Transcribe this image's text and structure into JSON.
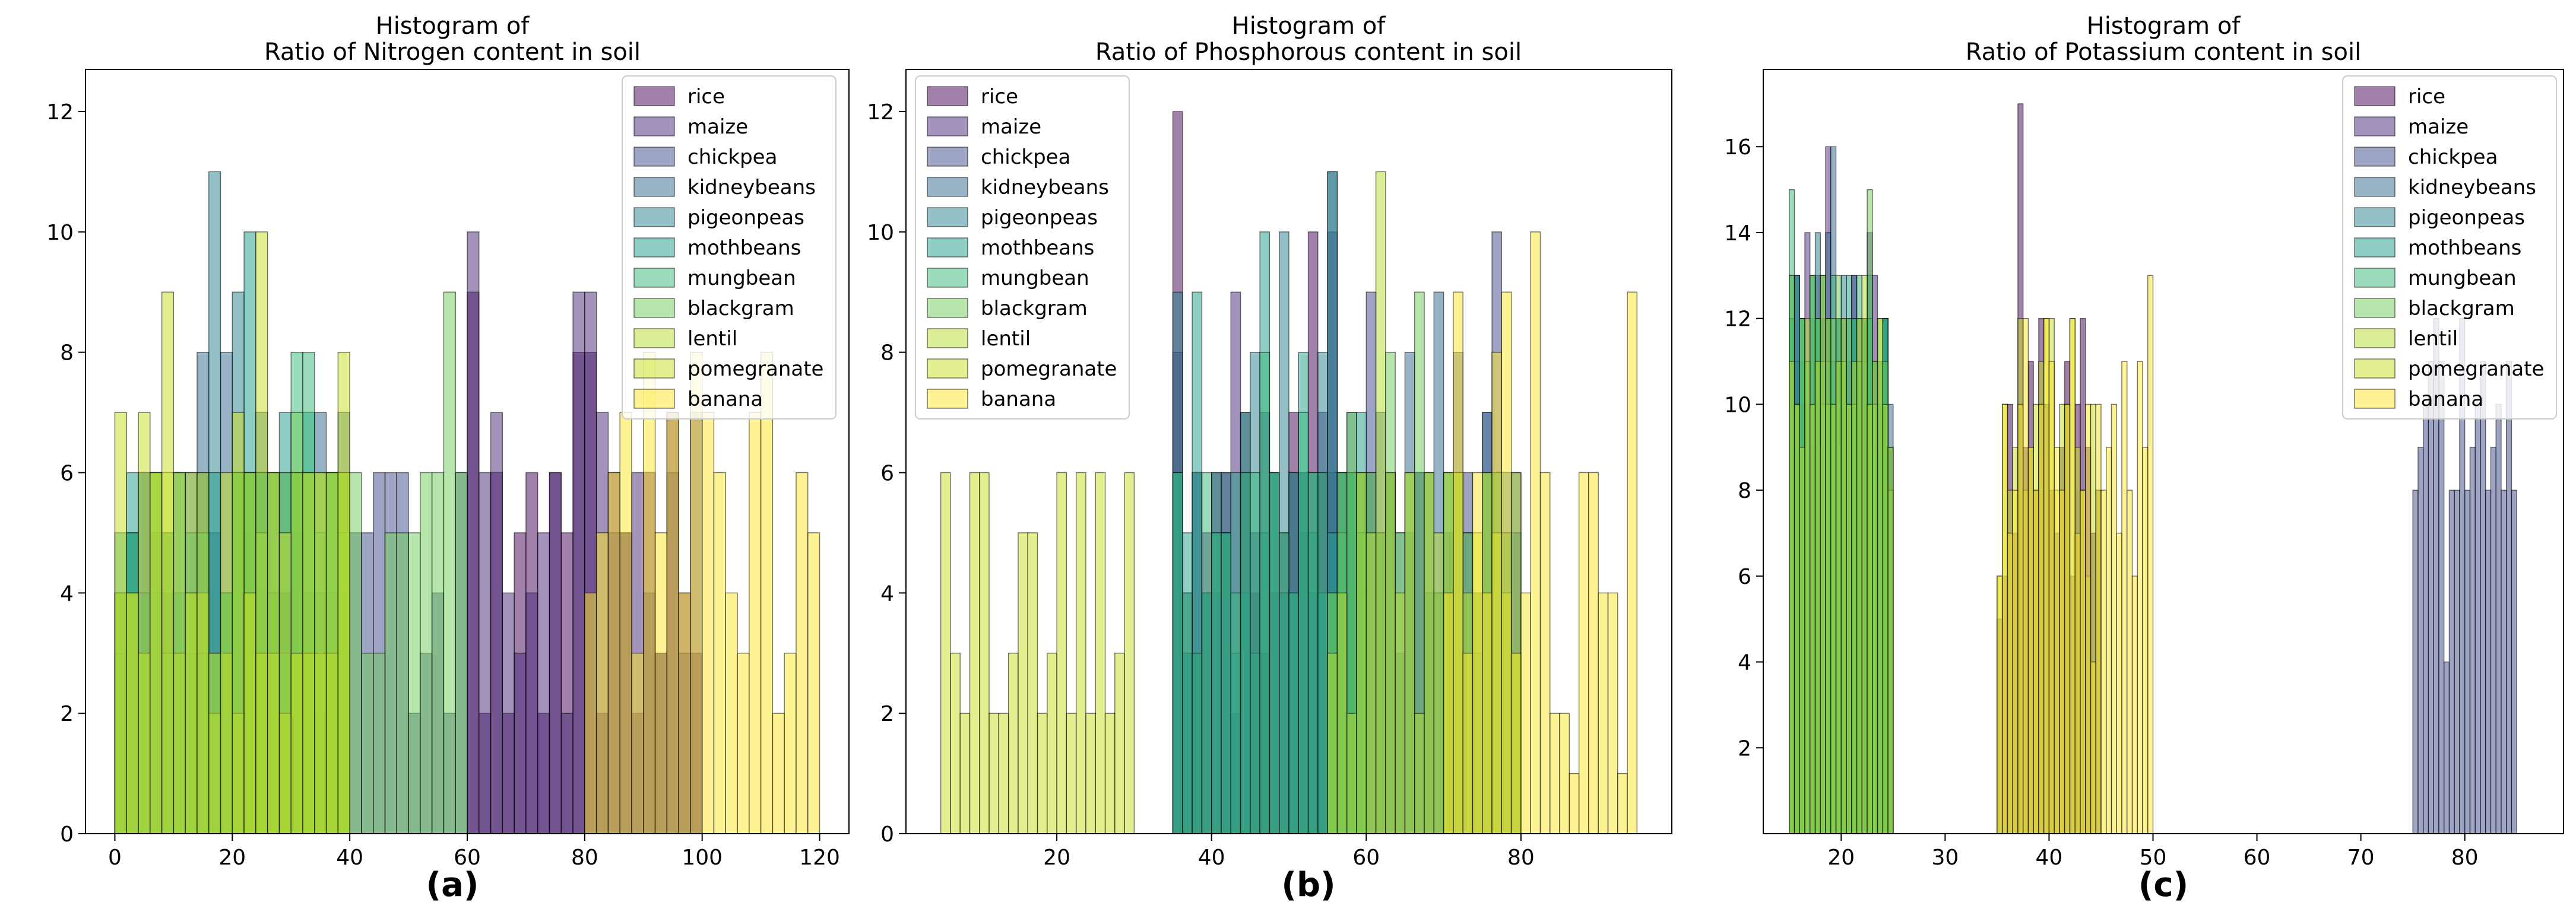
{
  "crops": [
    "rice",
    "maize",
    "chickpea",
    "kidneybeans",
    "pigeonpeas",
    "mothbeans",
    "mungbean",
    "blackgram",
    "lentil",
    "pomegranate",
    "banana"
  ],
  "colors": [
    "#440154",
    "#482878",
    "#3e4989",
    "#31688e",
    "#26828e",
    "#1f9e89",
    "#35b779",
    "#6ece58",
    "#b5de2b",
    "#c8e020",
    "#fde725"
  ],
  "chart_data": [
    {
      "type": "histogram",
      "title_line1": "Histogram of",
      "title_line2": "Ratio of Nitrogen content in soil",
      "caption": "(a)",
      "xlim": [
        -5,
        125
      ],
      "ylim": [
        0,
        12.7
      ],
      "xticks": [
        0,
        20,
        40,
        60,
        80,
        100,
        120
      ],
      "yticks": [
        0,
        2,
        4,
        6,
        8,
        10,
        12
      ],
      "bin_width": 2,
      "legend_position": "top-right",
      "series": [
        {
          "name": "rice",
          "start": 60,
          "counts": [
            9,
            2,
            6,
            2,
            5,
            6,
            2,
            6,
            5,
            8,
            8,
            2,
            6,
            5,
            2,
            6,
            3,
            7,
            4,
            3
          ]
        },
        {
          "name": "maize",
          "start": 60,
          "counts": [
            10,
            6,
            7,
            4,
            3,
            4,
            5,
            6,
            2,
            9,
            9,
            7,
            5,
            5,
            6,
            4,
            3,
            6,
            3,
            7
          ]
        },
        {
          "name": "chickpea",
          "start": 20,
          "counts": [
            6,
            6,
            4,
            4,
            4,
            6,
            4,
            2,
            3,
            3,
            5,
            5,
            6,
            6,
            6,
            2,
            3,
            4,
            2,
            6
          ]
        },
        {
          "name": "kidneybeans",
          "start": 0,
          "counts": [
            4,
            5,
            6,
            5,
            4,
            3,
            6,
            8,
            5,
            8,
            6,
            5,
            7,
            6,
            6,
            5,
            3,
            7,
            4,
            7
          ]
        },
        {
          "name": "pigeonpeas",
          "start": 0,
          "counts": [
            3,
            5,
            6,
            4,
            5,
            6,
            3,
            6,
            11,
            4,
            9,
            6,
            6,
            3,
            4,
            6,
            6,
            4,
            6,
            4
          ]
        },
        {
          "name": "mothbeans",
          "start": 0,
          "counts": [
            5,
            6,
            4,
            6,
            5,
            4,
            5,
            3,
            6,
            4,
            6,
            10,
            6,
            6,
            7,
            6,
            7,
            3,
            6,
            6
          ]
        },
        {
          "name": "mungbean",
          "start": 0,
          "counts": [
            4,
            5,
            3,
            6,
            3,
            6,
            4,
            5,
            3,
            4,
            6,
            6,
            6,
            4,
            3,
            8,
            8,
            5,
            6,
            5
          ]
        },
        {
          "name": "blackgram",
          "start": 20,
          "counts": [
            6,
            6,
            5,
            6,
            6,
            7,
            6,
            6,
            6,
            6,
            6,
            3,
            3,
            5,
            5,
            5,
            6,
            6,
            9,
            6
          ]
        },
        {
          "name": "lentil",
          "start": 0,
          "counts": [
            4,
            4,
            3,
            6,
            6,
            3,
            6,
            4,
            2,
            3,
            2,
            6,
            3,
            3,
            2,
            6,
            3,
            3,
            3,
            6
          ]
        },
        {
          "name": "pomegranate",
          "start": 0,
          "counts": [
            7,
            4,
            7,
            6,
            9,
            6,
            4,
            6,
            3,
            6,
            7,
            4,
            10,
            6,
            5,
            3,
            6,
            6,
            6,
            8
          ]
        },
        {
          "name": "banana",
          "start": 80,
          "counts": [
            4,
            5,
            6,
            7,
            3,
            8,
            5,
            7,
            4,
            8,
            7,
            6,
            4,
            3,
            7,
            8,
            2,
            3,
            6,
            5
          ]
        }
      ]
    },
    {
      "type": "histogram",
      "title_line1": "Histogram of",
      "title_line2": "Ratio of Phosphorous content in soil",
      "caption": "(b)",
      "xlim": [
        0.5,
        99.5
      ],
      "ylim": [
        0,
        12.7
      ],
      "xticks": [
        20,
        40,
        60,
        80
      ],
      "yticks": [
        0,
        2,
        4,
        6,
        8,
        10,
        12
      ],
      "bin_width": 1.25,
      "legend_position": "top-left",
      "series": [
        {
          "name": "rice",
          "start": 35,
          "counts": [
            12,
            3,
            3,
            4,
            6,
            6,
            2,
            7,
            4,
            3,
            4,
            5,
            7,
            6,
            10,
            6,
            4,
            3,
            6,
            5
          ]
        },
        {
          "name": "maize",
          "start": 35,
          "counts": [
            8,
            4,
            6,
            5,
            4,
            5,
            9,
            6,
            5,
            7,
            6,
            4,
            6,
            5,
            4,
            7,
            10,
            6,
            3,
            5
          ]
        },
        {
          "name": "chickpea",
          "start": 55,
          "counts": [
            6,
            4,
            5,
            6,
            9,
            5,
            6,
            3,
            5,
            6,
            6,
            4,
            5,
            8,
            6,
            4,
            7,
            10,
            5,
            6
          ]
        },
        {
          "name": "kidneybeans",
          "start": 55,
          "counts": [
            11,
            6,
            7,
            5,
            6,
            7,
            6,
            5,
            8,
            6,
            4,
            9,
            6,
            6,
            5,
            3,
            7,
            6,
            6,
            5
          ]
        },
        {
          "name": "pigeonpeas",
          "start": 35,
          "counts": [
            9,
            3,
            6,
            4,
            5,
            6,
            3,
            4,
            8,
            5,
            6,
            10,
            4,
            6,
            5,
            8,
            11,
            6,
            6,
            4
          ]
        },
        {
          "name": "mothbeans",
          "start": 35,
          "counts": [
            6,
            5,
            9,
            4,
            6,
            5,
            6,
            7,
            3,
            10,
            6,
            4,
            6,
            8,
            6,
            4,
            5,
            6,
            6,
            7
          ]
        },
        {
          "name": "mungbean",
          "start": 35,
          "counts": [
            6,
            4,
            3,
            6,
            5,
            5,
            4,
            6,
            6,
            8,
            6,
            5,
            4,
            7,
            6,
            6,
            4,
            5,
            6,
            5
          ]
        },
        {
          "name": "blackgram",
          "start": 55,
          "counts": [
            4,
            6,
            7,
            6,
            6,
            5,
            8,
            5,
            6,
            9,
            6,
            4,
            6,
            6,
            5,
            4,
            6,
            6,
            5,
            3
          ]
        },
        {
          "name": "lentil",
          "start": 55,
          "counts": [
            3,
            4,
            2,
            6,
            5,
            11,
            6,
            4,
            6,
            2,
            6,
            5,
            6,
            6,
            4,
            5,
            6,
            5,
            4,
            6
          ]
        },
        {
          "name": "pomegranate",
          "start": 5,
          "counts": [
            6,
            3,
            2,
            6,
            6,
            2,
            2,
            3,
            5,
            5,
            2,
            3,
            6,
            2,
            6,
            2,
            6,
            2,
            3,
            6
          ]
        },
        {
          "name": "banana",
          "start": 70,
          "counts": [
            4,
            9,
            3,
            6,
            4,
            8,
            9,
            3,
            4,
            10,
            6,
            2,
            2,
            1,
            6,
            6,
            4,
            4,
            1,
            9
          ]
        }
      ]
    },
    {
      "type": "histogram",
      "title_line1": "Histogram of",
      "title_line2": "Ratio of Potassium content in soil",
      "caption": "(c)",
      "xlim": [
        12.5,
        89.5
      ],
      "ylim": [
        0,
        17.8
      ],
      "xticks": [
        20,
        30,
        40,
        50,
        60,
        70,
        80
      ],
      "yticks": [
        2,
        4,
        6,
        8,
        10,
        12,
        14,
        16
      ],
      "bin_width": 0.5,
      "legend_position": "top-right",
      "series": [
        {
          "name": "rice",
          "start": 35,
          "counts": [
            5,
            6,
            10,
            7,
            17,
            9,
            11,
            8,
            12,
            10,
            8,
            7,
            9,
            11,
            6,
            10,
            12,
            9,
            7,
            8
          ]
        },
        {
          "name": "maize",
          "start": 15,
          "counts": [
            11,
            13,
            10,
            14,
            9,
            13,
            12,
            16,
            10,
            12,
            9,
            11,
            13,
            12,
            10,
            14,
            13,
            10,
            12,
            9
          ]
        },
        {
          "name": "chickpea",
          "start": 75,
          "counts": [
            8,
            9,
            10,
            11,
            12,
            11,
            4,
            8,
            8,
            12,
            8,
            9,
            10,
            11,
            8,
            9,
            10,
            8,
            11,
            8
          ]
        },
        {
          "name": "kidneybeans",
          "start": 15,
          "counts": [
            12,
            13,
            11,
            10,
            12,
            9,
            13,
            14,
            16,
            11,
            12,
            10,
            13,
            11,
            12,
            10,
            9,
            11,
            12,
            10
          ]
        },
        {
          "name": "pigeonpeas",
          "start": 15,
          "counts": [
            13,
            11,
            12,
            10,
            13,
            14,
            11,
            12,
            10,
            11,
            13,
            12,
            10,
            11,
            12,
            13,
            11,
            10,
            12,
            9
          ]
        },
        {
          "name": "mothbeans",
          "start": 15,
          "counts": [
            12,
            13,
            12,
            11,
            10,
            12,
            13,
            12,
            11,
            12,
            10,
            13,
            12,
            11,
            12,
            12,
            11,
            10,
            12,
            8
          ]
        },
        {
          "name": "mungbean",
          "start": 15,
          "counts": [
            15,
            10,
            12,
            11,
            13,
            12,
            10,
            11,
            13,
            12,
            11,
            10,
            12,
            13,
            11,
            12,
            10,
            11,
            12,
            9
          ]
        },
        {
          "name": "blackgram",
          "start": 15,
          "counts": [
            13,
            10,
            12,
            11,
            13,
            12,
            11,
            10,
            12,
            13,
            11,
            12,
            10,
            11,
            12,
            15,
            10,
            12,
            11,
            8
          ]
        },
        {
          "name": "lentil",
          "start": 15,
          "counts": [
            11,
            10,
            9,
            12,
            10,
            11,
            13,
            12,
            10,
            11,
            12,
            10,
            11,
            12,
            13,
            10,
            11,
            12,
            10,
            9
          ]
        },
        {
          "name": "pomegranate",
          "start": 35,
          "counts": [
            6,
            10,
            8,
            9,
            12,
            8,
            9,
            10,
            11,
            12,
            12,
            8,
            10,
            10,
            12,
            9,
            8,
            6,
            10,
            8
          ]
        },
        {
          "name": "banana",
          "start": 35,
          "counts": [
            6,
            10,
            7,
            8,
            10,
            12,
            9,
            8,
            10,
            12,
            11,
            9,
            8,
            10,
            12,
            7,
            8,
            10,
            4,
            10,
            8,
            9,
            10,
            7,
            11,
            8,
            6,
            11,
            9,
            13
          ]
        }
      ]
    }
  ]
}
